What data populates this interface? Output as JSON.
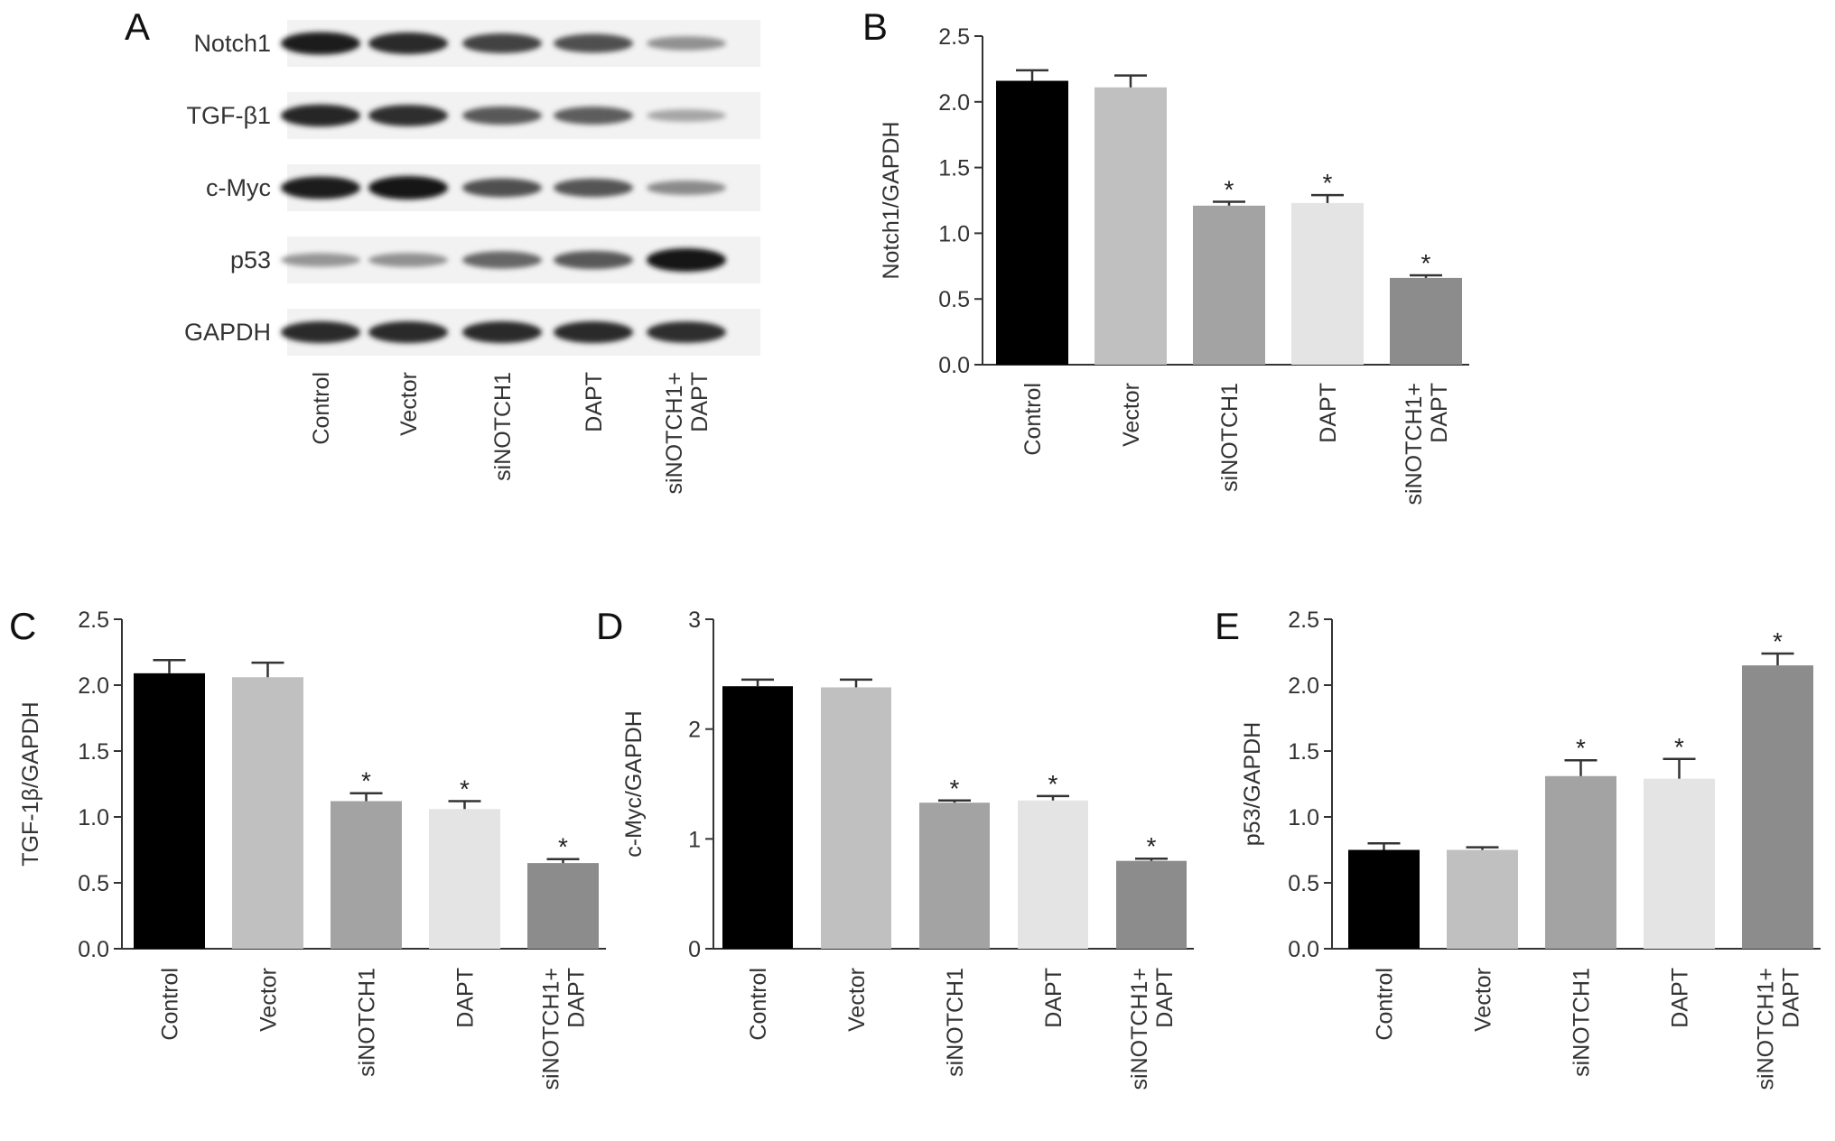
{
  "figure": {
    "blot": {
      "letter": "A",
      "rows": [
        "Notch1",
        "TGF-β1",
        "c-Myc",
        "p53",
        "GAPDH"
      ],
      "lanes": [
        "Control",
        "Vector",
        "siNOTCH1",
        "DAPT",
        "siNOTCH1+\nDAPT"
      ],
      "intensity": [
        [
          0.95,
          0.9,
          0.78,
          0.72,
          0.42
        ],
        [
          0.92,
          0.88,
          0.68,
          0.66,
          0.32
        ],
        [
          0.95,
          1.0,
          0.72,
          0.7,
          0.45
        ],
        [
          0.4,
          0.42,
          0.62,
          0.68,
          1.0
        ],
        [
          0.9,
          0.9,
          0.9,
          0.9,
          0.88
        ]
      ]
    },
    "colors": [
      "#000000",
      "#c0c0c0",
      "#a3a3a3",
      "#e4e4e4",
      "#8c8c8c"
    ]
  },
  "chart_data": [
    {
      "letter": "B",
      "type": "bar",
      "ylabel": "Notch1/GAPDH",
      "categories": [
        "Control",
        "Vector",
        "siNOTCH1",
        "DAPT",
        "siNOTCH1+\nDAPT"
      ],
      "values": [
        2.16,
        2.11,
        1.21,
        1.23,
        0.66
      ],
      "errors": [
        0.08,
        0.09,
        0.03,
        0.06,
        0.02
      ],
      "significance": [
        "",
        "",
        "*",
        "*",
        "*"
      ],
      "ylim": [
        0,
        2.5
      ],
      "yticks": [
        "0.0",
        "0.5",
        "1.0",
        "1.5",
        "2.0",
        "2.5"
      ]
    },
    {
      "letter": "C",
      "type": "bar",
      "ylabel": "TGF-1β/GAPDH",
      "categories": [
        "Control",
        "Vector",
        "siNOTCH1",
        "DAPT",
        "siNOTCH1+\nDAPT"
      ],
      "values": [
        2.09,
        2.06,
        1.12,
        1.06,
        0.65
      ],
      "errors": [
        0.1,
        0.11,
        0.06,
        0.06,
        0.03
      ],
      "significance": [
        "",
        "",
        "*",
        "*",
        "*"
      ],
      "ylim": [
        0,
        2.5
      ],
      "yticks": [
        "0.0",
        "0.5",
        "1.0",
        "1.5",
        "2.0",
        "2.5"
      ]
    },
    {
      "letter": "D",
      "type": "bar",
      "ylabel": "c-Myc/GAPDH",
      "categories": [
        "Control",
        "Vector",
        "siNOTCH1",
        "DAPT",
        "siNOTCH1+\nDAPT"
      ],
      "values": [
        2.39,
        2.38,
        1.33,
        1.35,
        0.8
      ],
      "errors": [
        0.06,
        0.07,
        0.02,
        0.04,
        0.02
      ],
      "significance": [
        "",
        "",
        "*",
        "*",
        "*"
      ],
      "ylim": [
        0,
        3
      ],
      "yticks": [
        "0",
        "1",
        "2",
        "3"
      ]
    },
    {
      "letter": "E",
      "type": "bar",
      "ylabel": "p53/GAPDH",
      "categories": [
        "Control",
        "Vector",
        "siNOTCH1",
        "DAPT",
        "siNOTCH1+\nDAPT"
      ],
      "values": [
        0.75,
        0.75,
        1.31,
        1.29,
        2.15
      ],
      "errors": [
        0.05,
        0.02,
        0.12,
        0.15,
        0.09
      ],
      "significance": [
        "",
        "",
        "*",
        "*",
        "*"
      ],
      "ylim": [
        0,
        2.5
      ],
      "yticks": [
        "0.0",
        "0.5",
        "1.0",
        "1.5",
        "2.0",
        "2.5"
      ]
    }
  ]
}
